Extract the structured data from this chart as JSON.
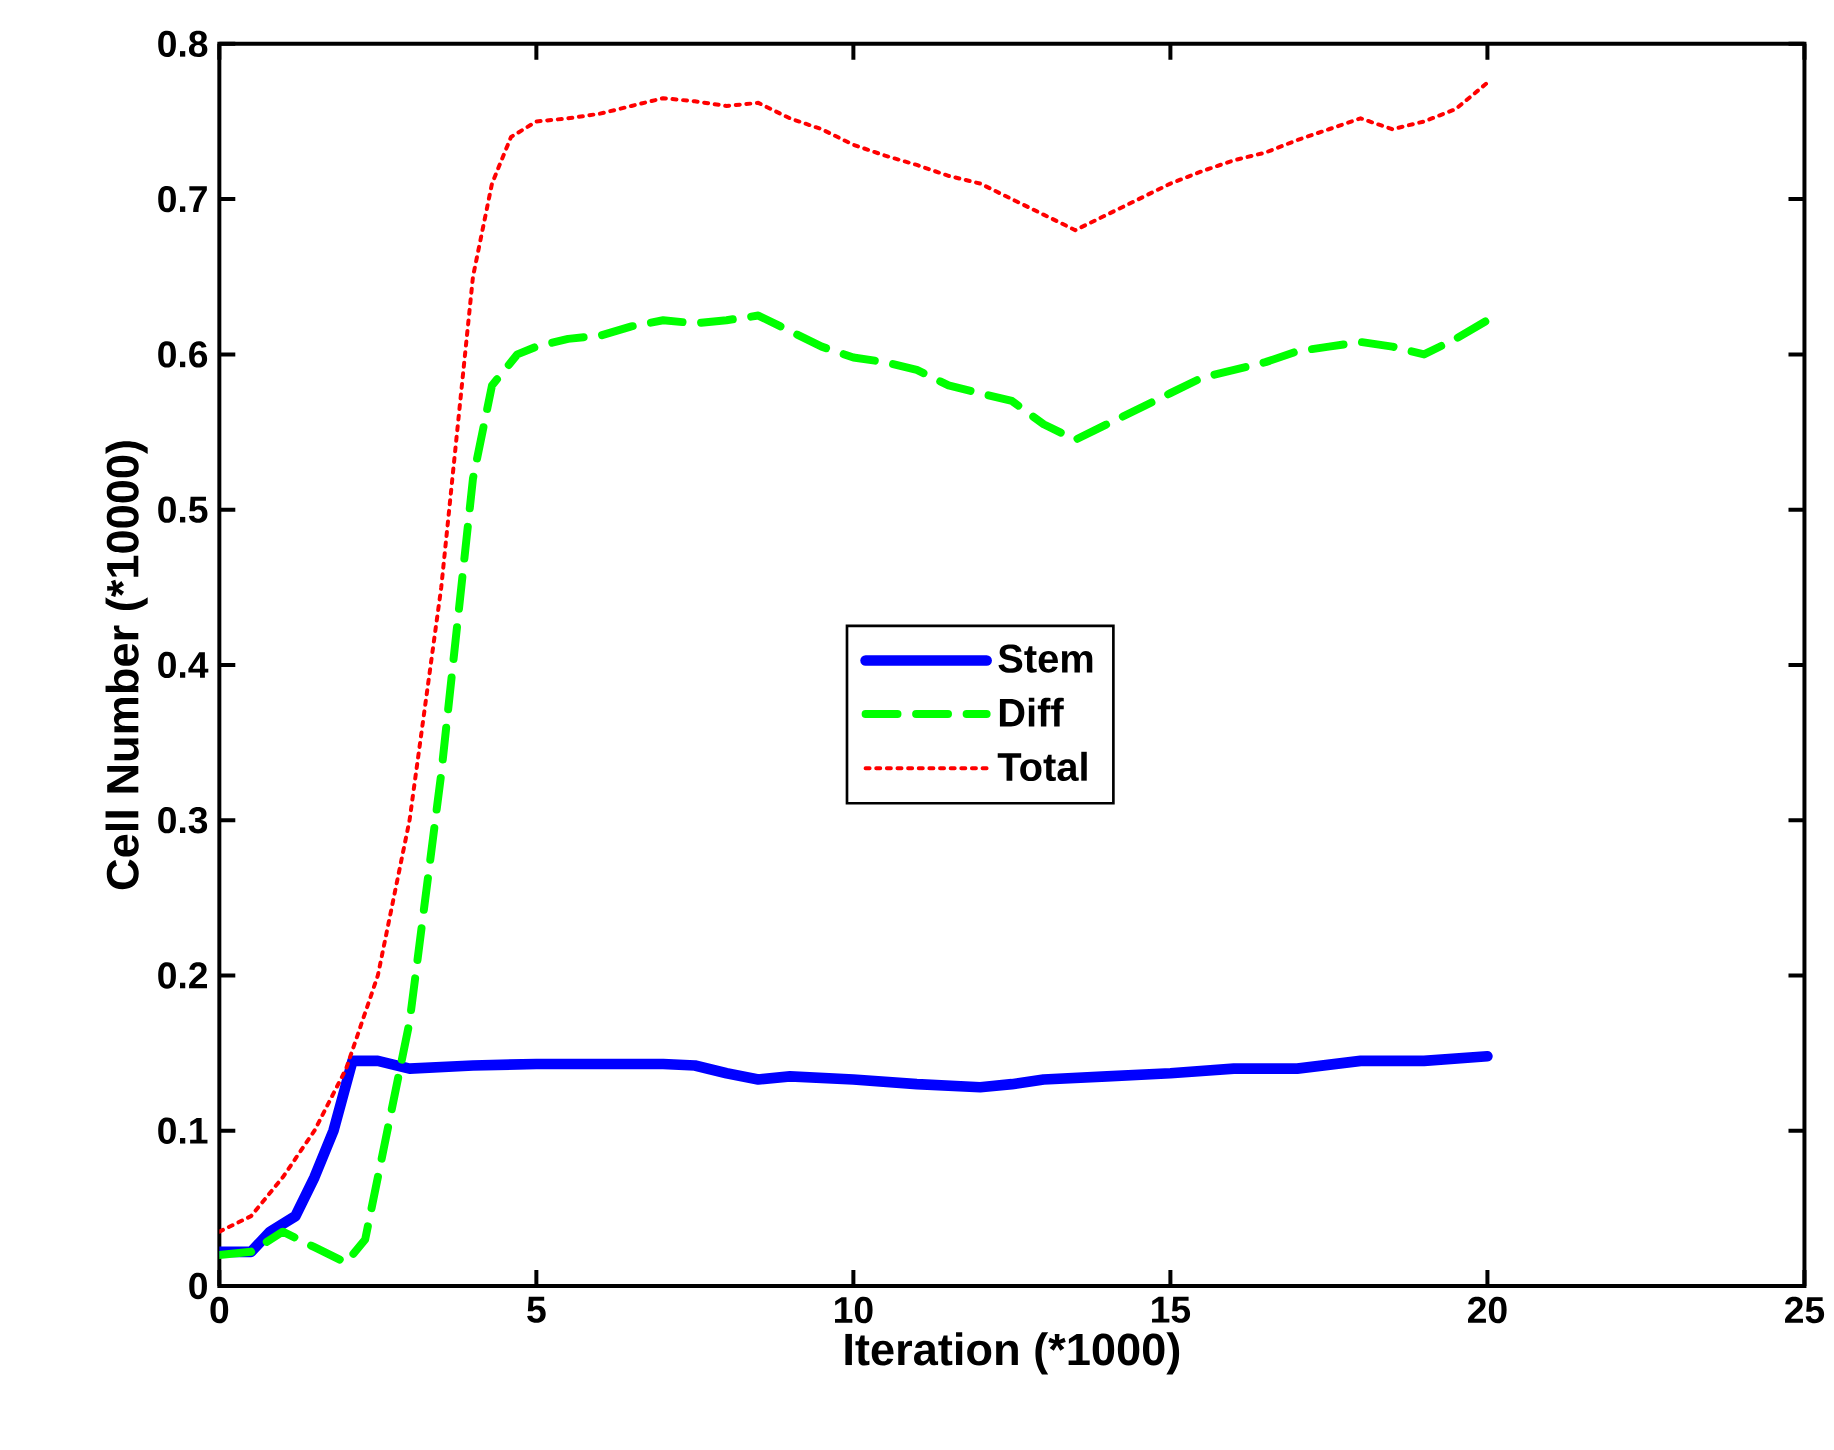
{
  "chart_data": {
    "type": "line",
    "xlabel": "Iteration (*1000)",
    "ylabel": "Cell Number (*10000)",
    "xlim": [
      0,
      25
    ],
    "xticks": [
      0,
      5,
      10,
      15,
      20,
      25
    ],
    "ylim": [
      0,
      0.8
    ],
    "yticks": [
      0,
      0.1,
      0.2,
      0.3,
      0.4,
      0.5,
      0.6,
      0.7,
      0.8
    ],
    "grid": false,
    "legend": "center",
    "marker": "none",
    "series": [
      {
        "name": "Stem",
        "color": "#0000ff",
        "line_style": "solid",
        "x": [
          0,
          0.5,
          0.8,
          1.2,
          1.5,
          1.8,
          2.1,
          2.5,
          3,
          4,
          5,
          6,
          7,
          7.5,
          8,
          8.5,
          9,
          10,
          11,
          12,
          12.5,
          13,
          14,
          15,
          16,
          17,
          18,
          19,
          20
        ],
        "values": [
          0.022,
          0.022,
          0.035,
          0.045,
          0.07,
          0.1,
          0.145,
          0.145,
          0.14,
          0.142,
          0.143,
          0.143,
          0.143,
          0.142,
          0.137,
          0.133,
          0.135,
          0.133,
          0.13,
          0.128,
          0.13,
          0.133,
          0.135,
          0.137,
          0.14,
          0.14,
          0.145,
          0.145,
          0.148
        ]
      },
      {
        "name": "Diff",
        "color": "#00ff00",
        "line_style": "dashed",
        "x": [
          0,
          0.5,
          1,
          1.5,
          2,
          2.3,
          2.6,
          3,
          3.5,
          4,
          4.3,
          4.7,
          5,
          5.5,
          6,
          6.5,
          7,
          7.5,
          8,
          8.5,
          9,
          9.5,
          10,
          10.5,
          11,
          11.5,
          12,
          12.5,
          13,
          13.5,
          14,
          14.5,
          15,
          15.5,
          16,
          16.5,
          17,
          17.5,
          18,
          18.5,
          19,
          19.5,
          20
        ],
        "values": [
          0.02,
          0.022,
          0.035,
          0.025,
          0.015,
          0.03,
          0.09,
          0.17,
          0.33,
          0.52,
          0.58,
          0.6,
          0.605,
          0.61,
          0.612,
          0.618,
          0.622,
          0.62,
          0.622,
          0.625,
          0.615,
          0.605,
          0.598,
          0.595,
          0.59,
          0.58,
          0.575,
          0.57,
          0.555,
          0.545,
          0.555,
          0.565,
          0.575,
          0.585,
          0.59,
          0.595,
          0.602,
          0.605,
          0.608,
          0.605,
          0.6,
          0.61,
          0.622
        ]
      },
      {
        "name": "Total",
        "color": "#ff0000",
        "line_style": "dotted",
        "x": [
          0,
          0.5,
          1,
          1.5,
          2,
          2.5,
          3,
          3.5,
          3.8,
          4,
          4.3,
          4.6,
          5,
          5.5,
          6,
          6.5,
          7,
          7.5,
          8,
          8.5,
          9,
          9.5,
          10,
          10.5,
          11,
          11.5,
          12,
          12.5,
          13,
          13.5,
          14,
          14.5,
          15,
          15.5,
          16,
          16.5,
          17,
          17.5,
          18,
          18.5,
          19,
          19.5,
          20
        ],
        "values": [
          0.035,
          0.045,
          0.07,
          0.1,
          0.14,
          0.2,
          0.3,
          0.45,
          0.57,
          0.65,
          0.71,
          0.74,
          0.75,
          0.752,
          0.755,
          0.76,
          0.765,
          0.763,
          0.76,
          0.762,
          0.752,
          0.745,
          0.735,
          0.728,
          0.722,
          0.715,
          0.71,
          0.7,
          0.69,
          0.68,
          0.69,
          0.7,
          0.71,
          0.718,
          0.725,
          0.73,
          0.738,
          0.745,
          0.752,
          0.745,
          0.75,
          0.758,
          0.775
        ]
      }
    ]
  }
}
